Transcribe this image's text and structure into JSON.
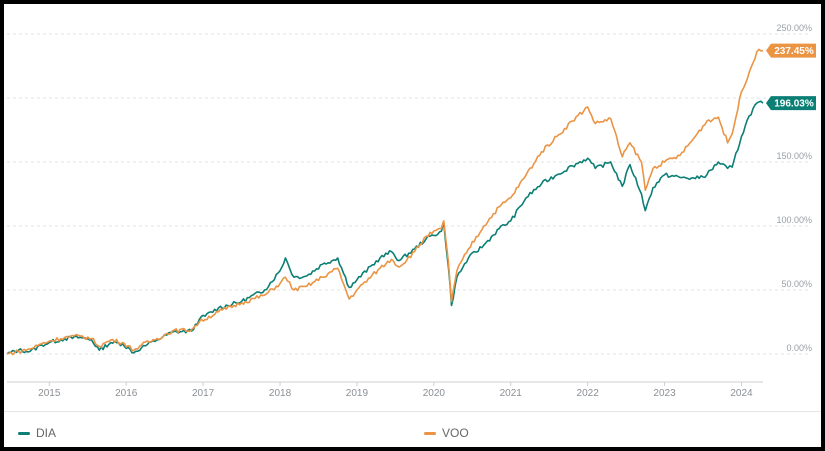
{
  "chart_data": {
    "type": "line",
    "y_unit": "%",
    "ylim": [
      -20,
      255
    ],
    "xlim": [
      2014.45,
      2024.28
    ],
    "grid": true,
    "y_ticks": [
      {
        "value": 250,
        "label": "250.00%"
      },
      {
        "value": 200,
        "label": ""
      },
      {
        "value": 150,
        "label": "150.00%"
      },
      {
        "value": 100,
        "label": "100.00%"
      },
      {
        "value": 50,
        "label": "50.00%"
      },
      {
        "value": 0,
        "label": "0.00%"
      }
    ],
    "x_ticks": [
      {
        "value": 2015,
        "label": "2015"
      },
      {
        "value": 2016,
        "label": "2016"
      },
      {
        "value": 2017,
        "label": "2017"
      },
      {
        "value": 2018,
        "label": "2018"
      },
      {
        "value": 2019,
        "label": "2019"
      },
      {
        "value": 2020,
        "label": "2020"
      },
      {
        "value": 2021,
        "label": "2021"
      },
      {
        "value": 2022,
        "label": "2022"
      },
      {
        "value": 2023,
        "label": "2023"
      },
      {
        "value": 2024,
        "label": "2024"
      }
    ],
    "legend_position": "bottom",
    "series": [
      {
        "name": "DIA",
        "color": "#0b7f75",
        "end_label": "196.03%",
        "points": [
          [
            2014.45,
            0
          ],
          [
            2014.6,
            3
          ],
          [
            2014.75,
            2
          ],
          [
            2014.9,
            7
          ],
          [
            2015.0,
            9
          ],
          [
            2015.2,
            12
          ],
          [
            2015.4,
            13
          ],
          [
            2015.55,
            11
          ],
          [
            2015.65,
            3
          ],
          [
            2015.8,
            9
          ],
          [
            2015.95,
            8
          ],
          [
            2016.1,
            1
          ],
          [
            2016.2,
            5
          ],
          [
            2016.4,
            11
          ],
          [
            2016.6,
            17
          ],
          [
            2016.85,
            18
          ],
          [
            2016.95,
            27
          ],
          [
            2017.2,
            36
          ],
          [
            2017.5,
            41
          ],
          [
            2017.8,
            50
          ],
          [
            2018.0,
            65
          ],
          [
            2018.07,
            75
          ],
          [
            2018.18,
            60
          ],
          [
            2018.35,
            61
          ],
          [
            2018.55,
            70
          ],
          [
            2018.75,
            75
          ],
          [
            2018.9,
            52
          ],
          [
            2019.0,
            58
          ],
          [
            2019.3,
            75
          ],
          [
            2019.45,
            80
          ],
          [
            2019.55,
            73
          ],
          [
            2019.75,
            82
          ],
          [
            2019.9,
            90
          ],
          [
            2020.1,
            96
          ],
          [
            2020.13,
            102
          ],
          [
            2020.19,
            68
          ],
          [
            2020.23,
            38
          ],
          [
            2020.3,
            60
          ],
          [
            2020.45,
            75
          ],
          [
            2020.65,
            85
          ],
          [
            2020.85,
            98
          ],
          [
            2021.0,
            104
          ],
          [
            2021.2,
            122
          ],
          [
            2021.4,
            133
          ],
          [
            2021.6,
            140
          ],
          [
            2021.8,
            147
          ],
          [
            2022.0,
            153
          ],
          [
            2022.1,
            145
          ],
          [
            2022.3,
            150
          ],
          [
            2022.45,
            131
          ],
          [
            2022.55,
            148
          ],
          [
            2022.7,
            125
          ],
          [
            2022.75,
            112
          ],
          [
            2022.85,
            130
          ],
          [
            2023.0,
            140
          ],
          [
            2023.2,
            138
          ],
          [
            2023.4,
            137
          ],
          [
            2023.55,
            140
          ],
          [
            2023.7,
            150
          ],
          [
            2023.82,
            145
          ],
          [
            2023.88,
            146
          ],
          [
            2024.0,
            170
          ],
          [
            2024.1,
            186
          ],
          [
            2024.2,
            196
          ],
          [
            2024.28,
            196
          ]
        ]
      },
      {
        "name": "VOO",
        "color": "#ea9444",
        "end_label": "237.45%",
        "points": [
          [
            2014.45,
            0
          ],
          [
            2014.6,
            2
          ],
          [
            2014.75,
            4
          ],
          [
            2014.9,
            8
          ],
          [
            2015.0,
            10
          ],
          [
            2015.2,
            13
          ],
          [
            2015.4,
            14
          ],
          [
            2015.55,
            12
          ],
          [
            2015.65,
            6
          ],
          [
            2015.8,
            11
          ],
          [
            2015.95,
            9
          ],
          [
            2016.1,
            3
          ],
          [
            2016.2,
            7
          ],
          [
            2016.4,
            12
          ],
          [
            2016.6,
            18
          ],
          [
            2016.85,
            19
          ],
          [
            2016.95,
            25
          ],
          [
            2017.2,
            33
          ],
          [
            2017.5,
            40
          ],
          [
            2017.8,
            46
          ],
          [
            2018.0,
            55
          ],
          [
            2018.07,
            60
          ],
          [
            2018.18,
            50
          ],
          [
            2018.35,
            53
          ],
          [
            2018.55,
            60
          ],
          [
            2018.75,
            67
          ],
          [
            2018.9,
            43
          ],
          [
            2019.0,
            50
          ],
          [
            2019.3,
            67
          ],
          [
            2019.45,
            74
          ],
          [
            2019.55,
            68
          ],
          [
            2019.75,
            80
          ],
          [
            2019.9,
            92
          ],
          [
            2020.1,
            98
          ],
          [
            2020.13,
            104
          ],
          [
            2020.19,
            72
          ],
          [
            2020.23,
            41
          ],
          [
            2020.3,
            65
          ],
          [
            2020.45,
            82
          ],
          [
            2020.65,
            100
          ],
          [
            2020.85,
            115
          ],
          [
            2021.0,
            122
          ],
          [
            2021.2,
            140
          ],
          [
            2021.4,
            158
          ],
          [
            2021.6,
            170
          ],
          [
            2021.8,
            182
          ],
          [
            2022.0,
            193
          ],
          [
            2022.1,
            180
          ],
          [
            2022.3,
            184
          ],
          [
            2022.45,
            154
          ],
          [
            2022.55,
            165
          ],
          [
            2022.7,
            150
          ],
          [
            2022.75,
            128
          ],
          [
            2022.85,
            145
          ],
          [
            2023.0,
            150
          ],
          [
            2023.2,
            155
          ],
          [
            2023.4,
            170
          ],
          [
            2023.55,
            182
          ],
          [
            2023.7,
            185
          ],
          [
            2023.82,
            165
          ],
          [
            2023.88,
            172
          ],
          [
            2024.0,
            205
          ],
          [
            2024.1,
            220
          ],
          [
            2024.2,
            236
          ],
          [
            2024.28,
            237
          ]
        ]
      }
    ]
  }
}
